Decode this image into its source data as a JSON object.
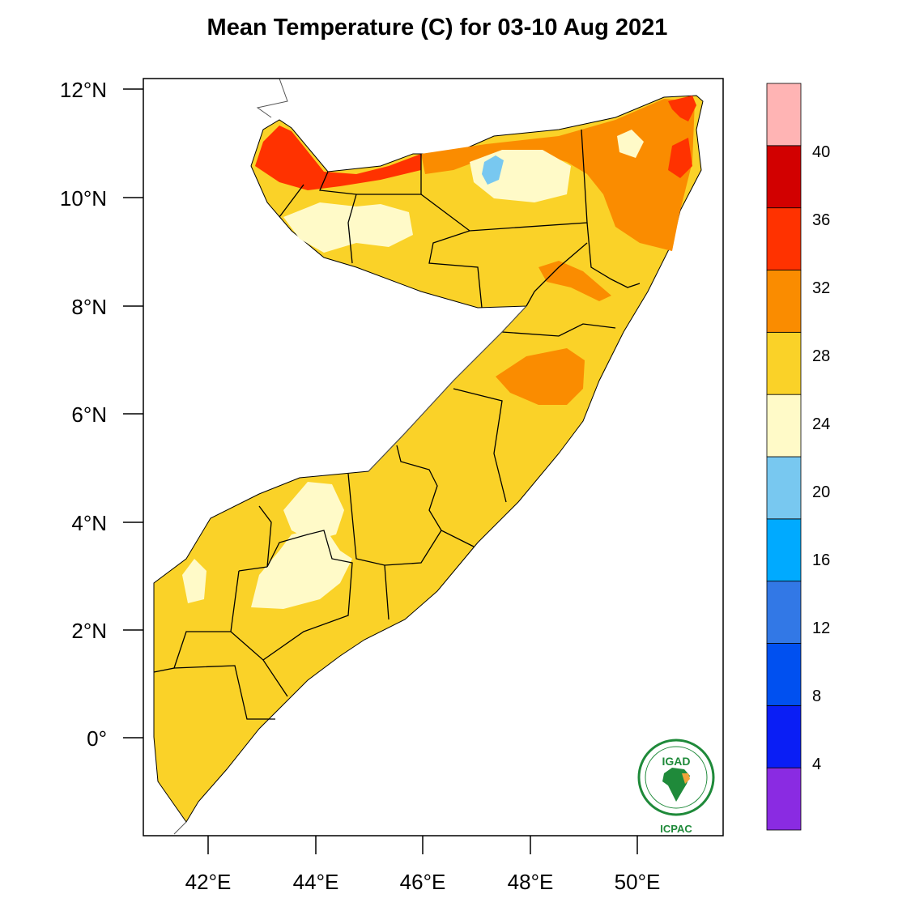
{
  "title": "Mean Temperature (C) for 03-10 Aug 2021",
  "map": {
    "region": "Somalia",
    "lat_ticks": [
      "12°N",
      "10°N",
      "8°N",
      "6°N",
      "4°N",
      "2°N",
      "0°"
    ],
    "lon_ticks": [
      "42°E",
      "44°E",
      "46°E",
      "48°E",
      "50°E"
    ],
    "lat_range": [
      -1.8,
      12.2
    ],
    "lon_range": [
      40.8,
      51.6
    ]
  },
  "colorbar": {
    "unit": "C",
    "labels": [
      "4",
      "8",
      "12",
      "16",
      "20",
      "24",
      "28",
      "32",
      "36",
      "40"
    ],
    "colors": [
      "#8a2be2",
      "#0a1ef5",
      "#0050f0",
      "#3278e6",
      "#00aaff",
      "#78c8f0",
      "#fffac8",
      "#fad228",
      "#fa8c00",
      "#ff3200",
      "#d20000",
      "#ffb4b4"
    ]
  },
  "logo": {
    "top_text": "IGAD",
    "bottom_text": "ICPAC"
  }
}
